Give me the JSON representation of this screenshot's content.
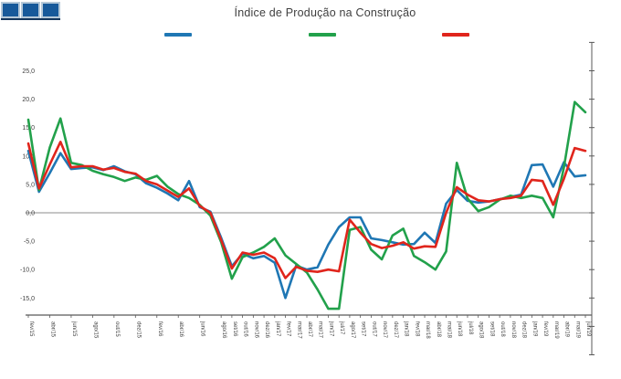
{
  "title": "Índice de Produção na Construção",
  "logo": {
    "tile_count": 3,
    "fill": "#17599A",
    "border": "#B5C8D8",
    "base": "#14365C"
  },
  "legend": {
    "items": [
      {
        "label": "",
        "color": "#1F77B4"
      },
      {
        "label": "",
        "color": "#22A14B"
      },
      {
        "label": "",
        "color": "#E0251C"
      }
    ]
  },
  "chart_data": {
    "type": "line",
    "title": "Índice de Produção na Construção",
    "xlabel": "",
    "ylabel": "",
    "ylim": [
      -18,
      28
    ],
    "grid": false,
    "zero_line": true,
    "legend_position": "top",
    "y_ticks": [
      {
        "label": "25,0",
        "value": 25
      },
      {
        "label": "20,0",
        "value": 20
      },
      {
        "label": "15,0",
        "value": 15
      },
      {
        "label": "10,0",
        "value": 10
      },
      {
        "label": "5,0",
        "value": 5
      },
      {
        "label": "0,0",
        "value": 0
      },
      {
        "label": "-5,0",
        "value": -5
      },
      {
        "label": "-10,0",
        "value": -10
      },
      {
        "label": "-15,0",
        "value": -15
      }
    ],
    "x_labels": [
      "fev/15",
      "mar/15",
      "abr/15",
      "mai/15",
      "jun/15",
      "jul/15",
      "ago/15",
      "set/15",
      "out/15",
      "nov/15",
      "dez/15",
      "jan/16",
      "fev/16",
      "mar/16",
      "abr/16",
      "mai/16",
      "jun/16",
      "jul/16",
      "ago/16",
      "set/16",
      "out/16",
      "nov/16",
      "dez/16",
      "jan/17",
      "fev/17",
      "mar/17",
      "abr/17",
      "mai/17",
      "jun/17",
      "jul/17",
      "ago/17",
      "set/17",
      "out/17",
      "nov/17",
      "dez/17",
      "jan/18",
      "fev/18",
      "mar/18",
      "abr/18",
      "mai/18",
      "jun/18",
      "jul/18",
      "ago/18",
      "set/18",
      "out/18",
      "nov/18",
      "dez/18",
      "jan/19",
      "fev/19",
      "mar/19",
      "abr/19",
      "mai/19",
      "jun/19"
    ],
    "series": [
      {
        "name": "azul",
        "color": "#1F77B4",
        "values": [
          10.9,
          3.7,
          7.0,
          10.5,
          7.7,
          7.9,
          8.0,
          7.5,
          8.2,
          7.3,
          6.8,
          5.2,
          4.4,
          3.4,
          2.2,
          5.6,
          1.0,
          0.2,
          -4.4,
          -9.4,
          -7.2,
          -8.0,
          -7.6,
          -8.8,
          -15.0,
          -9.3,
          -10.0,
          -9.6,
          -5.6,
          -2.5,
          -0.8,
          -0.8,
          -4.5,
          -4.8,
          -5.2,
          -5.6,
          -5.5,
          -3.5,
          -5.3,
          1.6,
          4.0,
          2.1,
          1.8,
          2.0,
          2.4,
          2.8,
          3.2,
          8.4,
          8.5,
          4.6,
          8.9,
          6.4,
          6.6
        ]
      },
      {
        "name": "verde",
        "color": "#22A14B",
        "values": [
          16.4,
          4.0,
          11.5,
          16.6,
          8.8,
          8.4,
          7.4,
          6.8,
          6.3,
          5.6,
          6.2,
          5.8,
          6.5,
          4.6,
          3.3,
          2.6,
          1.4,
          -0.5,
          -5.2,
          -11.6,
          -7.8,
          -7.0,
          -6.0,
          -4.5,
          -7.5,
          -9.0,
          -10.5,
          -13.5,
          -16.9,
          -16.9,
          -3.0,
          -2.5,
          -6.5,
          -8.2,
          -4.0,
          -2.8,
          -7.6,
          -8.7,
          -10.0,
          -6.8,
          8.8,
          2.5,
          0.3,
          1.0,
          2.3,
          3.0,
          2.6,
          3.0,
          2.6,
          -0.8,
          8.0,
          19.5,
          17.7
        ]
      },
      {
        "name": "vermelha",
        "color": "#E0251C",
        "values": [
          12.2,
          4.3,
          8.5,
          12.5,
          8.0,
          8.2,
          8.2,
          7.6,
          7.9,
          7.2,
          6.9,
          5.6,
          5.0,
          3.9,
          2.8,
          4.3,
          1.2,
          0.0,
          -4.8,
          -9.8,
          -7.0,
          -7.4,
          -7.0,
          -8.0,
          -11.5,
          -9.5,
          -10.2,
          -10.4,
          -10.0,
          -10.3,
          -1.2,
          -3.5,
          -5.5,
          -6.2,
          -5.8,
          -5.2,
          -6.3,
          -5.9,
          -6.0,
          0.0,
          4.5,
          3.2,
          2.2,
          2.0,
          2.4,
          2.6,
          3.0,
          5.8,
          5.6,
          1.4,
          6.0,
          11.4,
          10.9
        ]
      }
    ]
  }
}
